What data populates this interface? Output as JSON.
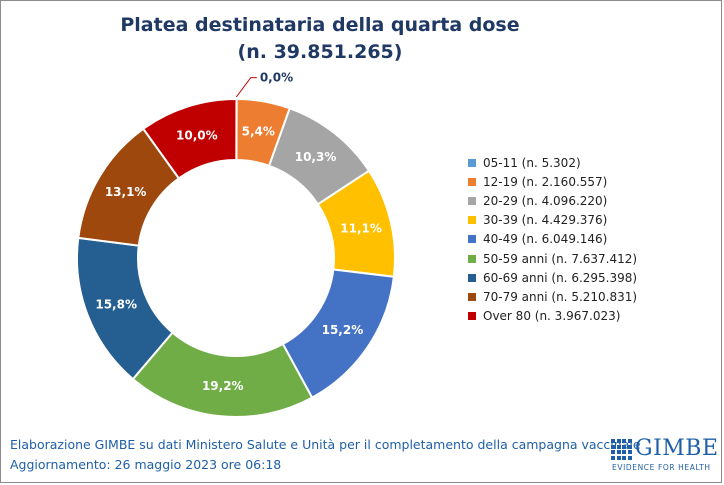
{
  "chart_data": {
    "type": "pie",
    "title": "Platea destinataria della quarta dose",
    "subtitle": "(n. 39.851.265)",
    "legend_position": "right",
    "series": [
      {
        "name": "05-11 (n. 5.302)",
        "value": 5302,
        "label": "0,0%",
        "color": "#5b9bd5"
      },
      {
        "name": "12-19 (n. 2.160.557)",
        "value": 2160557,
        "label": "5,4%",
        "color": "#ed7d31"
      },
      {
        "name": "20-29 (n. 4.096.220)",
        "value": 4096220,
        "label": "10,3%",
        "color": "#a5a5a5"
      },
      {
        "name": "30-39 (n. 4.429.376)",
        "value": 4429376,
        "label": "11,1%",
        "color": "#ffc000"
      },
      {
        "name": "40-49 (n. 6.049.146)",
        "value": 6049146,
        "label": "15,2%",
        "color": "#4472c4"
      },
      {
        "name": "50-59 anni (n. 7.637.412)",
        "value": 7637412,
        "label": "19,2%",
        "color": "#70ad47"
      },
      {
        "name": "60-69 anni (n. 6.295.398)",
        "value": 6295398,
        "label": "15,8%",
        "color": "#255e91"
      },
      {
        "name": "70-79 anni (n. 5.210.831)",
        "value": 5210831,
        "label": "13,1%",
        "color": "#9e480e"
      },
      {
        "name": "Over 80 (n. 3.967.023)",
        "value": 3967023,
        "label": "10,0%",
        "color": "#c00000"
      }
    ]
  },
  "footer": {
    "line1": "Elaborazione GIMBE su dati Ministero Salute e Unità per il completamento della campagna vaccinale",
    "line2": "Aggiornamento: 26 maggio 2023 ore 06:18"
  },
  "logo": {
    "word": "GIMBE",
    "tagline": "EVIDENCE FOR HEALTH"
  }
}
